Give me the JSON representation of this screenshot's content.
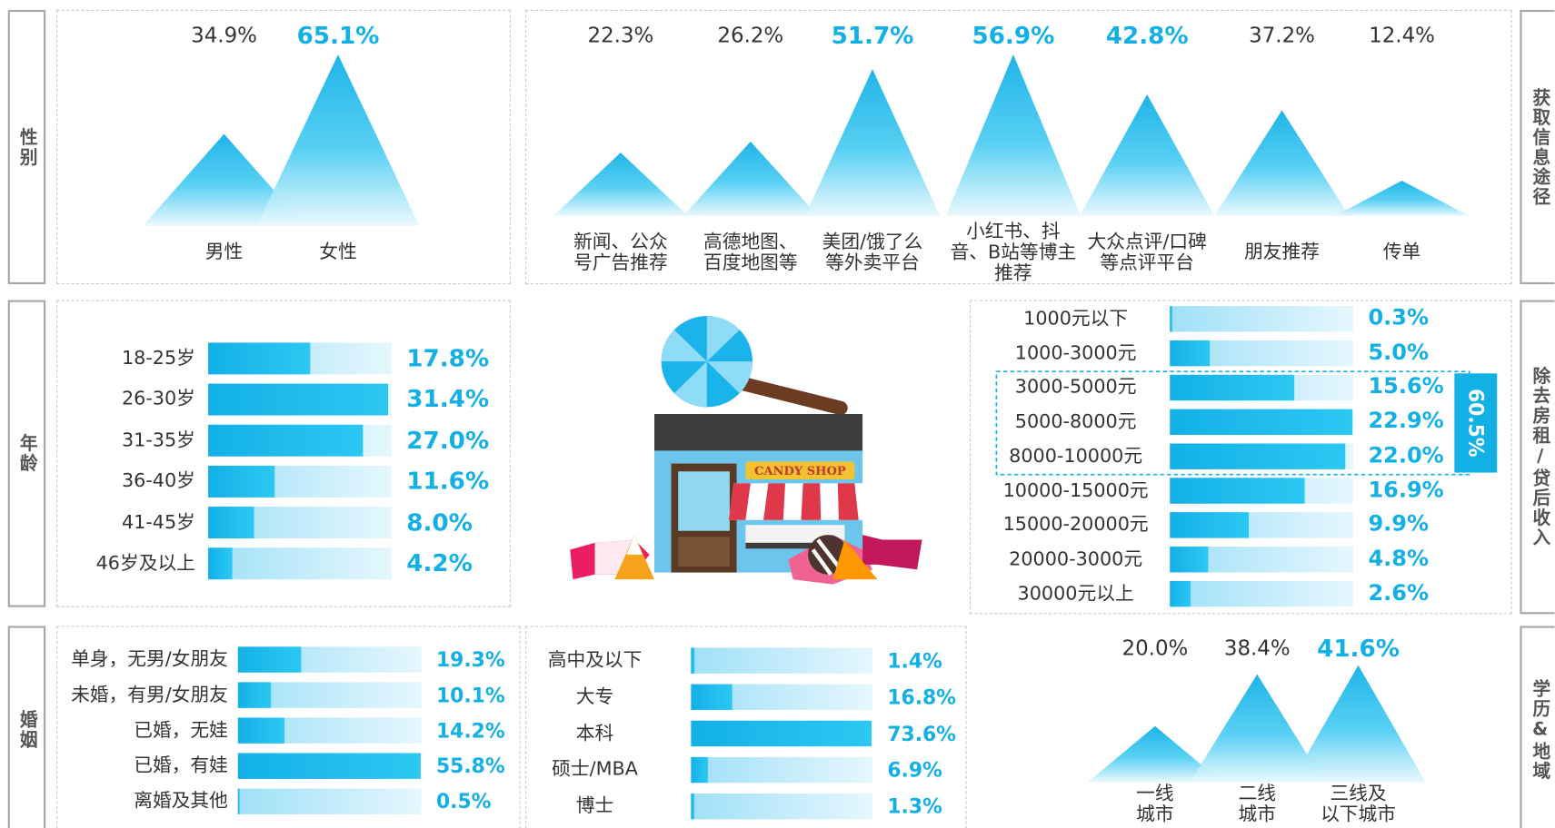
{
  "illustration": {
    "sign": "CANDY SHOP"
  },
  "chart_data": [
    {
      "type": "peak",
      "title": "性别",
      "color": "#13b0e6",
      "categories": [
        "男性",
        "女性"
      ],
      "values": [
        34.9,
        65.1
      ],
      "value_labels": [
        "34.9%",
        "65.1%"
      ],
      "highlight": [
        false,
        true
      ],
      "ylim": [
        0,
        70
      ]
    },
    {
      "type": "peak",
      "title": "获取信息途径",
      "color": "#13b0e6",
      "categories": [
        "新闻、公众\n号广告推荐",
        "高德地图、\n百度地图等",
        "美团/饿了么\n等外卖平台",
        "小红书、抖\n音、B站等博主\n推荐",
        "大众点评/口碑\n等点评平台",
        "朋友推荐",
        "传单"
      ],
      "values": [
        22.3,
        26.2,
        51.7,
        56.9,
        42.8,
        37.2,
        12.4
      ],
      "value_labels": [
        "22.3%",
        "26.2%",
        "51.7%",
        "56.9%",
        "42.8%",
        "37.2%",
        "12.4%"
      ],
      "highlight": [
        false,
        false,
        true,
        true,
        true,
        false,
        false
      ],
      "ylim": [
        0,
        60
      ]
    },
    {
      "type": "bar",
      "title": "年龄",
      "color": "#13b0e6",
      "categories": [
        "18-25岁",
        "26-30岁",
        "31-35岁",
        "36-40岁",
        "41-45岁",
        "46岁及以上"
      ],
      "values": [
        17.8,
        31.4,
        27.0,
        11.6,
        8.0,
        4.2
      ],
      "value_labels": [
        "17.8%",
        "31.4%",
        "27.0%",
        "11.6%",
        "8.0%",
        "4.2%"
      ],
      "xlim": [
        0,
        32
      ]
    },
    {
      "type": "bar",
      "title": "除去房租/贷后收入",
      "color": "#13b0e6",
      "categories": [
        "1000元以下",
        "1000-3000元",
        "3000-5000元",
        "5000-8000元",
        "8000-10000元",
        "10000-15000元",
        "15000-20000元",
        "20000-3000元",
        "30000元以上"
      ],
      "values": [
        0.3,
        5.0,
        15.6,
        22.9,
        22.0,
        16.9,
        9.9,
        4.8,
        2.6
      ],
      "value_labels": [
        "0.3%",
        "5.0%",
        "15.6%",
        "22.9%",
        "22.0%",
        "16.9%",
        "9.9%",
        "4.8%",
        "2.6%"
      ],
      "xlim": [
        0,
        23
      ],
      "bracket": {
        "label": "60.5%",
        "from": "3000-5000元",
        "to": "8000-10000元"
      }
    },
    {
      "type": "bar",
      "title": "婚姻",
      "color": "#13b0e6",
      "categories": [
        "单身，无男/女朋友",
        "未婚，有男/女朋友",
        "已婚，无娃",
        "已婚，有娃",
        "离婚及其他"
      ],
      "values": [
        19.3,
        10.1,
        14.2,
        55.8,
        0.5
      ],
      "value_labels": [
        "19.3%",
        "10.1%",
        "14.2%",
        "55.8%",
        "0.5%"
      ],
      "xlim": [
        0,
        56
      ]
    },
    {
      "type": "bar",
      "color": "#13b0e6",
      "categories": [
        "高中及以下",
        "大专",
        "本科",
        "硕士/MBA",
        "博士"
      ],
      "values": [
        1.4,
        16.8,
        73.6,
        6.9,
        1.3
      ],
      "value_labels": [
        "1.4%",
        "16.8%",
        "73.6%",
        "6.9%",
        "1.3%"
      ],
      "xlim": [
        0,
        74
      ]
    },
    {
      "type": "peak",
      "title": "学历&地域",
      "color": "#13b0e6",
      "categories": [
        "一线\n城市",
        "二线\n城市",
        "三线及\n以下城市"
      ],
      "values": [
        20.0,
        38.4,
        41.6
      ],
      "value_labels": [
        "20.0%",
        "38.4%",
        "41.6%"
      ],
      "highlight": [
        false,
        false,
        true
      ],
      "ylim": [
        0,
        45
      ]
    }
  ]
}
